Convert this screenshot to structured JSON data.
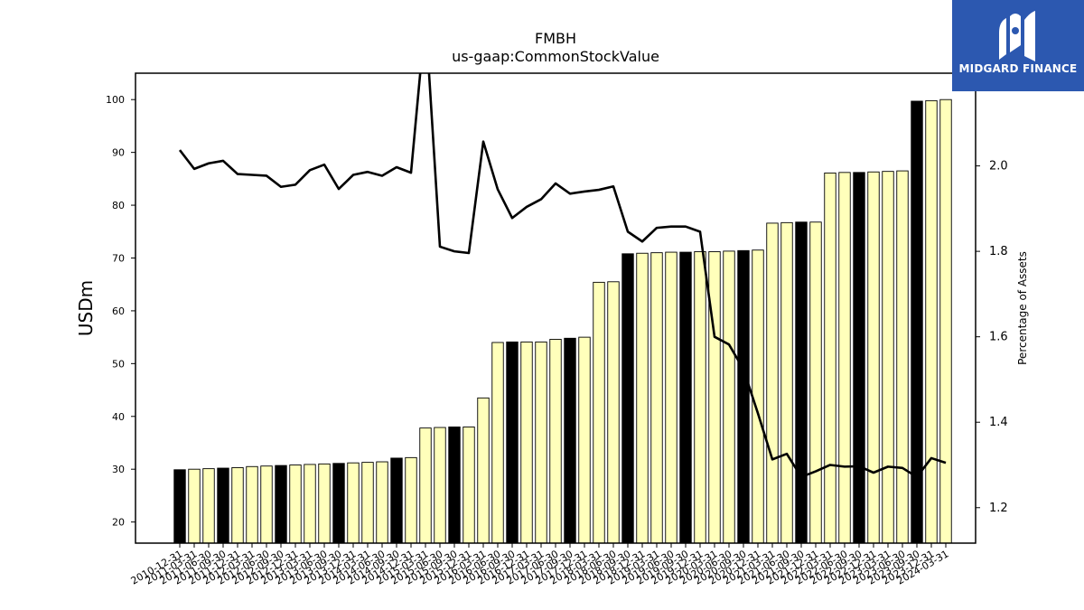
{
  "logo": {
    "text": "MIDGARD FINANCE"
  },
  "chart_data": {
    "type": "bar",
    "title": "FMBH",
    "subtitle": "us-gaap:CommonStockValue",
    "ylabel": "USDm",
    "y2label": "Percentage of Assets",
    "ylim": [
      16,
      105
    ],
    "y2lim": [
      1.117,
      2.217
    ],
    "yticks": [
      20,
      30,
      40,
      50,
      60,
      70,
      80,
      90,
      100
    ],
    "y2ticks": [
      "1.2",
      "1.4",
      "1.6",
      "1.8",
      "2.0"
    ],
    "grid": false,
    "categories": [
      "2010-12-31",
      "2011-03-31",
      "2011-06-30",
      "2011-09-30",
      "2011-12-31",
      "2012-03-31",
      "2012-06-30",
      "2012-09-30",
      "2012-12-31",
      "2013-03-31",
      "2013-06-30",
      "2013-09-30",
      "2013-12-31",
      "2014-03-31",
      "2014-06-30",
      "2014-09-30",
      "2014-12-31",
      "2015-03-31",
      "2015-06-30",
      "2015-09-30",
      "2015-12-31",
      "2016-03-31",
      "2016-06-30",
      "2016-09-30",
      "2016-12-31",
      "2017-03-31",
      "2017-06-30",
      "2017-09-30",
      "2017-12-31",
      "2018-03-31",
      "2018-06-30",
      "2018-09-30",
      "2018-12-31",
      "2019-03-31",
      "2019-06-30",
      "2019-09-30",
      "2019-12-31",
      "2020-03-31",
      "2020-06-30",
      "2020-09-30",
      "2020-12-31",
      "2021-03-31",
      "2021-06-30",
      "2021-09-30",
      "2021-12-31",
      "2022-03-31",
      "2022-06-30",
      "2022-09-30",
      "2022-12-31",
      "2023-03-31",
      "2023-06-30",
      "2023-09-30",
      "2023-12-31",
      "2024-03-31"
    ],
    "highlight": [
      true,
      false,
      false,
      true,
      false,
      false,
      false,
      true,
      false,
      false,
      false,
      true,
      false,
      false,
      false,
      true,
      false,
      false,
      false,
      true,
      false,
      false,
      false,
      true,
      false,
      false,
      false,
      true,
      false,
      false,
      false,
      true,
      false,
      false,
      false,
      true,
      false,
      false,
      false,
      true,
      false,
      false,
      false,
      true,
      false,
      false,
      false,
      true,
      false,
      false,
      false,
      true,
      false,
      false
    ],
    "series": [
      {
        "name": "CommonStockValue",
        "type": "bar",
        "values": [
          29.9,
          30.0,
          30.1,
          30.2,
          30.3,
          30.5,
          30.6,
          30.7,
          30.8,
          30.9,
          31.0,
          31.1,
          31.2,
          31.3,
          31.4,
          32.1,
          32.2,
          37.8,
          37.9,
          38.0,
          38.0,
          43.5,
          54.0,
          54.1,
          54.1,
          54.1,
          54.6,
          54.8,
          55.0,
          65.4,
          65.5,
          70.8,
          70.9,
          71.0,
          71.1,
          71.1,
          71.2,
          71.2,
          71.3,
          71.4,
          71.5,
          76.6,
          76.7,
          76.8,
          76.8,
          86.1,
          86.2,
          86.2,
          86.3,
          86.4,
          86.5,
          99.7,
          99.8,
          100.0
        ]
      },
      {
        "name": "Percentage of Assets",
        "type": "line",
        "values": [
          2.037,
          1.993,
          2.006,
          2.012,
          1.981,
          1.979,
          1.977,
          1.951,
          1.956,
          1.99,
          2.003,
          1.946,
          1.979,
          1.986,
          1.977,
          1.997,
          1.984,
          2.35,
          1.811,
          1.8,
          1.796,
          2.057,
          1.945,
          1.878,
          1.904,
          1.922,
          1.959,
          1.935,
          1.94,
          1.944,
          1.952,
          1.846,
          1.823,
          1.855,
          1.858,
          1.858,
          1.846,
          1.6,
          1.582,
          1.524,
          1.421,
          1.313,
          1.326,
          1.272,
          1.285,
          1.3,
          1.296,
          1.297,
          1.282,
          1.296,
          1.293,
          1.272,
          1.316,
          1.305
        ]
      }
    ]
  }
}
